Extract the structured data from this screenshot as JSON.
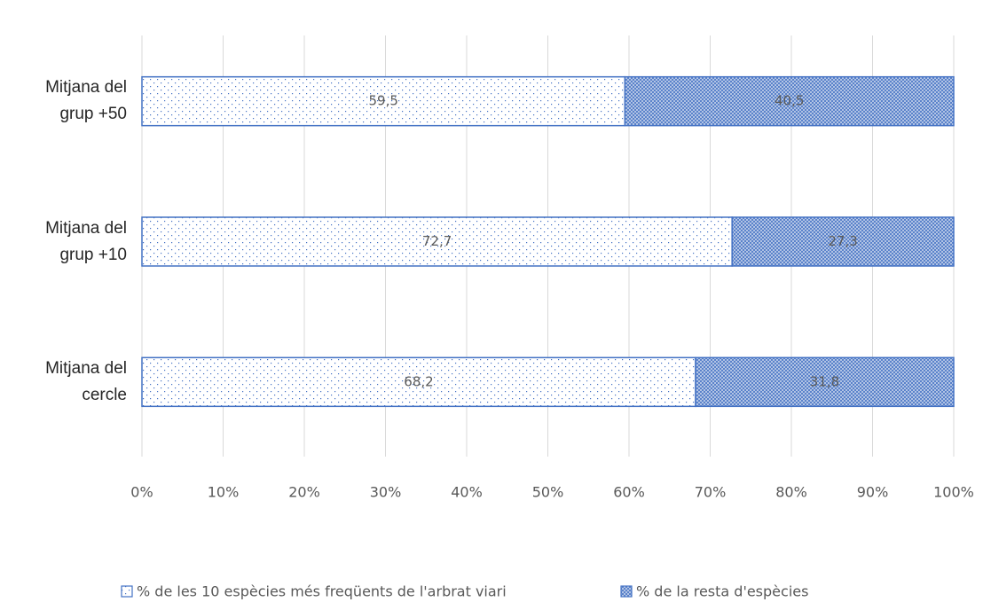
{
  "chart_data": {
    "type": "stacked_barh",
    "categories": [
      "Mitjana del grup +50",
      "Mitjana del grup +10",
      "Mitjana del cercle"
    ],
    "series": [
      {
        "name": "% de les 10 espècies més freqüents de l'arbrat viari",
        "color": "#4472c4",
        "pattern": "dots",
        "values": [
          59.5,
          72.7,
          68.2
        ],
        "value_labels": [
          "59,5",
          "72,7",
          "68,2"
        ]
      },
      {
        "name": "% de la resta d'espècies",
        "color": "#4472c4",
        "pattern": "crosshatch",
        "values": [
          40.5,
          27.3,
          31.8
        ],
        "value_labels": [
          "40,5",
          "27,3",
          "31,8"
        ]
      }
    ],
    "xlim": [
      0,
      100
    ],
    "xticks": [
      {
        "value": 0,
        "label": "0%"
      },
      {
        "value": 10,
        "label": "10%"
      },
      {
        "value": 20,
        "label": "20%"
      },
      {
        "value": 30,
        "label": "30%"
      },
      {
        "value": 40,
        "label": "40%"
      },
      {
        "value": 50,
        "label": "50%"
      },
      {
        "value": 60,
        "label": "60%"
      },
      {
        "value": 70,
        "label": "70%"
      },
      {
        "value": 80,
        "label": "80%"
      },
      {
        "value": 90,
        "label": "90%"
      },
      {
        "value": 100,
        "label": "100%"
      }
    ],
    "grid": true,
    "legend": "bottom"
  }
}
